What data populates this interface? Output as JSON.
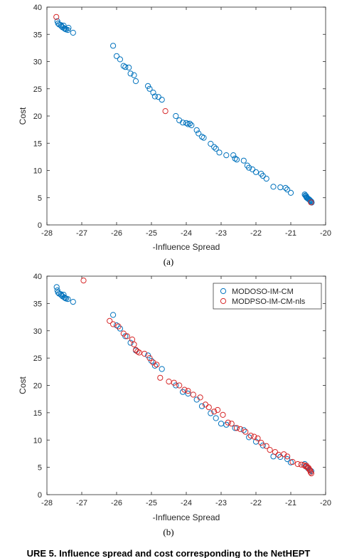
{
  "chart_data": [
    {
      "type": "scatter",
      "subplot_label": "(a)",
      "xlabel": "-Influence Spread",
      "ylabel": "Cost",
      "xlim": [
        -28,
        -20
      ],
      "ylim": [
        0,
        40
      ],
      "xticks": [
        "-28",
        "-27",
        "-26",
        "-25",
        "-24",
        "-23",
        "-22",
        "-21",
        "-20"
      ],
      "yticks": [
        "0",
        "5",
        "10",
        "15",
        "20",
        "25",
        "30",
        "35",
        "40"
      ],
      "grid": false,
      "legend": null,
      "series": [
        {
          "color": "#0072BD",
          "points": [
            [
              -27.7,
              37.4
            ],
            [
              -27.68,
              37.0
            ],
            [
              -27.65,
              36.8
            ],
            [
              -27.6,
              36.7
            ],
            [
              -27.58,
              36.5
            ],
            [
              -27.55,
              36.3
            ],
            [
              -27.52,
              36.6
            ],
            [
              -27.5,
              36.1
            ],
            [
              -27.48,
              36.0
            ],
            [
              -27.45,
              35.9
            ],
            [
              -27.4,
              35.8
            ],
            [
              -27.38,
              36.2
            ],
            [
              -27.25,
              35.3
            ],
            [
              -26.1,
              32.9
            ],
            [
              -26.0,
              31.0
            ],
            [
              -25.9,
              30.4
            ],
            [
              -25.8,
              29.2
            ],
            [
              -25.75,
              29.0
            ],
            [
              -25.65,
              28.9
            ],
            [
              -25.6,
              27.8
            ],
            [
              -25.5,
              27.5
            ],
            [
              -25.45,
              26.4
            ],
            [
              -25.1,
              25.5
            ],
            [
              -25.05,
              25.0
            ],
            [
              -24.95,
              24.3
            ],
            [
              -24.9,
              23.6
            ],
            [
              -24.8,
              23.5
            ],
            [
              -24.7,
              23.0
            ],
            [
              -24.3,
              20.0
            ],
            [
              -24.2,
              19.2
            ],
            [
              -24.1,
              18.8
            ],
            [
              -24.0,
              18.7
            ],
            [
              -23.95,
              18.5
            ],
            [
              -23.9,
              18.6
            ],
            [
              -23.85,
              18.3
            ],
            [
              -23.7,
              17.4
            ],
            [
              -23.65,
              16.8
            ],
            [
              -23.55,
              16.2
            ],
            [
              -23.5,
              16.0
            ],
            [
              -23.3,
              14.9
            ],
            [
              -23.2,
              14.3
            ],
            [
              -23.15,
              14.0
            ],
            [
              -23.05,
              13.3
            ],
            [
              -22.85,
              12.8
            ],
            [
              -22.65,
              12.8
            ],
            [
              -22.6,
              12.2
            ],
            [
              -22.55,
              12.0
            ],
            [
              -22.35,
              11.8
            ],
            [
              -22.25,
              10.9
            ],
            [
              -22.2,
              10.5
            ],
            [
              -22.1,
              10.2
            ],
            [
              -22.0,
              9.7
            ],
            [
              -21.85,
              9.4
            ],
            [
              -21.8,
              9.0
            ],
            [
              -21.7,
              8.5
            ],
            [
              -21.5,
              7.0
            ],
            [
              -21.3,
              6.9
            ],
            [
              -21.15,
              6.8
            ],
            [
              -21.1,
              6.5
            ],
            [
              -21.0,
              5.9
            ],
            [
              -20.6,
              5.6
            ],
            [
              -20.58,
              5.4
            ],
            [
              -20.56,
              5.3
            ],
            [
              -20.55,
              5.1
            ],
            [
              -20.54,
              5.0
            ],
            [
              -20.52,
              4.9
            ],
            [
              -20.5,
              4.8
            ],
            [
              -20.48,
              4.7
            ],
            [
              -20.46,
              4.6
            ],
            [
              -20.45,
              4.5
            ],
            [
              -20.43,
              4.4
            ],
            [
              -20.41,
              4.3
            ],
            [
              -20.4,
              4.1
            ]
          ]
        },
        {
          "color": "#D62728",
          "points": [
            [
              -27.73,
              38.2
            ],
            [
              -24.6,
              20.9
            ],
            [
              -20.42,
              4.15
            ]
          ]
        }
      ]
    },
    {
      "type": "scatter",
      "subplot_label": "(b)",
      "xlabel": "-Influence Spread",
      "ylabel": "Cost",
      "xlim": [
        -28,
        -20
      ],
      "ylim": [
        0,
        40
      ],
      "xticks": [
        "-28",
        "-27",
        "-26",
        "-25",
        "-24",
        "-23",
        "-22",
        "-21",
        "-20"
      ],
      "yticks": [
        "0",
        "5",
        "10",
        "15",
        "20",
        "25",
        "30",
        "35",
        "40"
      ],
      "grid": false,
      "legend": "top-right",
      "series": [
        {
          "name": "MODOSO-IM-CM",
          "color": "#0072BD",
          "points": [
            [
              -27.72,
              38.0
            ],
            [
              -27.7,
              37.4
            ],
            [
              -27.68,
              37.0
            ],
            [
              -27.65,
              36.8
            ],
            [
              -27.6,
              36.7
            ],
            [
              -27.58,
              36.5
            ],
            [
              -27.55,
              36.3
            ],
            [
              -27.52,
              36.6
            ],
            [
              -27.5,
              36.1
            ],
            [
              -27.48,
              36.0
            ],
            [
              -27.45,
              35.9
            ],
            [
              -27.4,
              35.8
            ],
            [
              -27.25,
              35.3
            ],
            [
              -26.1,
              32.9
            ],
            [
              -26.0,
              31.0
            ],
            [
              -25.9,
              30.4
            ],
            [
              -25.75,
              29.0
            ],
            [
              -25.6,
              27.8
            ],
            [
              -25.45,
              26.4
            ],
            [
              -25.1,
              25.5
            ],
            [
              -25.0,
              24.5
            ],
            [
              -24.9,
              23.6
            ],
            [
              -24.7,
              23.0
            ],
            [
              -24.3,
              20.0
            ],
            [
              -24.1,
              18.8
            ],
            [
              -23.95,
              18.5
            ],
            [
              -23.7,
              17.4
            ],
            [
              -23.55,
              16.2
            ],
            [
              -23.3,
              14.9
            ],
            [
              -23.15,
              14.0
            ],
            [
              -23.0,
              13.0
            ],
            [
              -22.85,
              12.8
            ],
            [
              -22.6,
              12.2
            ],
            [
              -22.35,
              11.8
            ],
            [
              -22.2,
              10.5
            ],
            [
              -22.0,
              9.7
            ],
            [
              -21.8,
              9.0
            ],
            [
              -21.5,
              7.0
            ],
            [
              -21.3,
              6.9
            ],
            [
              -21.1,
              6.5
            ],
            [
              -21.0,
              5.9
            ],
            [
              -20.6,
              5.6
            ],
            [
              -20.55,
              5.1
            ],
            [
              -20.5,
              4.8
            ],
            [
              -20.45,
              4.5
            ],
            [
              -20.41,
              4.3
            ]
          ]
        },
        {
          "name": "MODPSO-IM-CM-nls",
          "color": "#D62728",
          "points": [
            [
              -26.95,
              39.2
            ],
            [
              -26.2,
              31.8
            ],
            [
              -26.1,
              31.2
            ],
            [
              -25.95,
              30.8
            ],
            [
              -25.8,
              29.5
            ],
            [
              -25.7,
              29.0
            ],
            [
              -25.55,
              28.4
            ],
            [
              -25.5,
              27.5
            ],
            [
              -25.45,
              26.5
            ],
            [
              -25.4,
              26.2
            ],
            [
              -25.35,
              26.0
            ],
            [
              -25.2,
              25.8
            ],
            [
              -25.05,
              25.0
            ],
            [
              -24.95,
              24.2
            ],
            [
              -24.85,
              23.8
            ],
            [
              -24.75,
              21.4
            ],
            [
              -24.5,
              20.7
            ],
            [
              -24.35,
              20.5
            ],
            [
              -24.2,
              20.0
            ],
            [
              -24.05,
              19.2
            ],
            [
              -23.95,
              19.0
            ],
            [
              -23.8,
              18.3
            ],
            [
              -23.6,
              17.8
            ],
            [
              -23.45,
              16.5
            ],
            [
              -23.35,
              16.0
            ],
            [
              -23.2,
              15.2
            ],
            [
              -23.1,
              15.5
            ],
            [
              -22.95,
              14.6
            ],
            [
              -22.8,
              13.2
            ],
            [
              -22.7,
              13.0
            ],
            [
              -22.55,
              12.2
            ],
            [
              -22.45,
              12.0
            ],
            [
              -22.3,
              11.5
            ],
            [
              -22.15,
              10.8
            ],
            [
              -22.05,
              10.6
            ],
            [
              -21.95,
              10.3
            ],
            [
              -21.85,
              9.5
            ],
            [
              -21.7,
              8.9
            ],
            [
              -21.6,
              8.2
            ],
            [
              -21.45,
              7.8
            ],
            [
              -21.35,
              7.3
            ],
            [
              -21.2,
              7.4
            ],
            [
              -21.1,
              7.0
            ],
            [
              -20.95,
              6.0
            ],
            [
              -20.8,
              5.6
            ],
            [
              -20.7,
              5.5
            ],
            [
              -20.62,
              5.4
            ],
            [
              -20.58,
              5.2
            ],
            [
              -20.55,
              5.3
            ],
            [
              -20.52,
              5.0
            ],
            [
              -20.49,
              4.9
            ],
            [
              -20.47,
              4.6
            ],
            [
              -20.44,
              4.4
            ],
            [
              -20.43,
              4.1
            ],
            [
              -20.41,
              3.9
            ]
          ]
        }
      ]
    }
  ],
  "caption": "URE 5. Influence spread and cost corresponding to the NetHEPT"
}
